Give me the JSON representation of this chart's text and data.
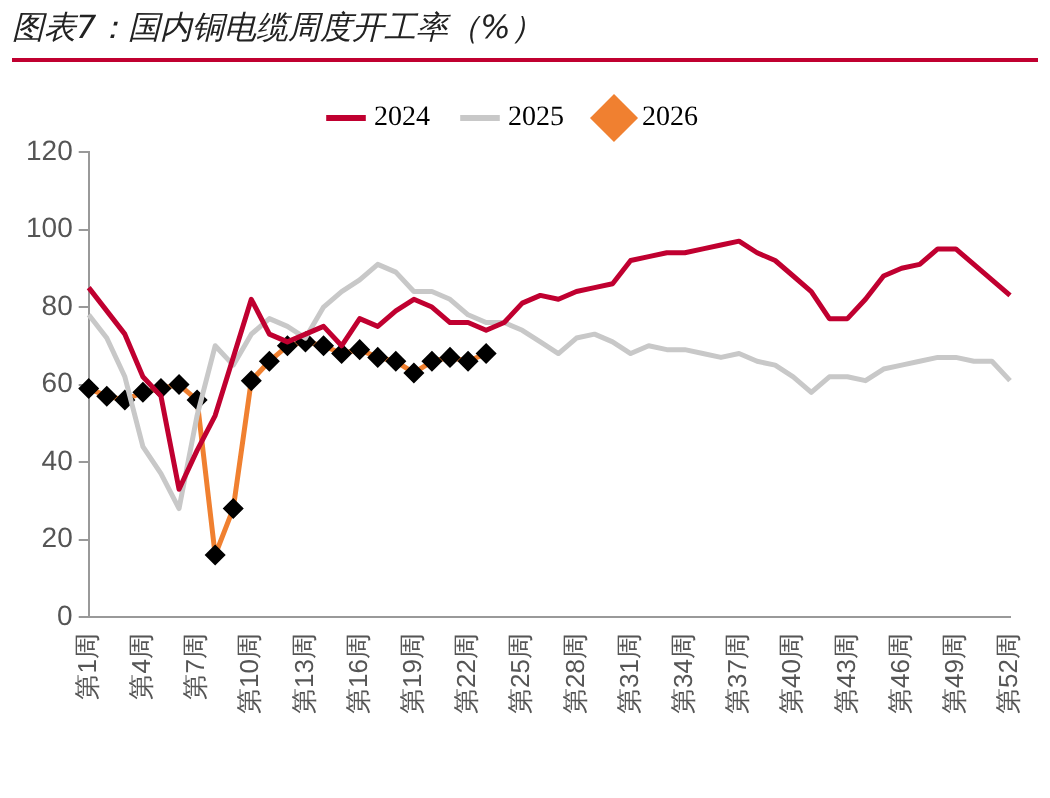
{
  "chart_data": {
    "type": "line",
    "title": "图表7：国内铜电缆周度开工率（%）",
    "categories": [
      "第1周",
      null,
      null,
      "第4周",
      null,
      null,
      "第7周",
      null,
      null,
      "第10周",
      null,
      null,
      "第13周",
      null,
      null,
      "第16周",
      null,
      null,
      "第19周",
      null,
      null,
      "第22周",
      null,
      null,
      "第25周",
      null,
      null,
      "第28周",
      null,
      null,
      "第31周",
      null,
      null,
      "第34周",
      null,
      null,
      "第37周",
      null,
      null,
      "第40周",
      null,
      null,
      "第43周",
      null,
      null,
      "第46周",
      null,
      null,
      "第49周",
      null,
      null,
      "第52周"
    ],
    "series": [
      {
        "name": "2024",
        "color": "#c00030",
        "marker": "none",
        "values": [
          85,
          79,
          73,
          62,
          57,
          33,
          43,
          52,
          67,
          82,
          73,
          71,
          73,
          75,
          70,
          77,
          75,
          79,
          82,
          80,
          76,
          76,
          74,
          76,
          81,
          83,
          82,
          84,
          85,
          86,
          92,
          93,
          94,
          94,
          95,
          96,
          97,
          94,
          92,
          88,
          84,
          77,
          77,
          82,
          88,
          90,
          91,
          95,
          95,
          91,
          87,
          83
        ]
      },
      {
        "name": "2025",
        "color": "#c8c8c8",
        "marker": "none",
        "values": [
          78,
          72,
          62,
          44,
          37,
          28,
          52,
          70,
          65,
          73,
          77,
          75,
          72,
          80,
          84,
          87,
          91,
          89,
          84,
          84,
          82,
          78,
          76,
          76,
          74,
          71,
          68,
          72,
          73,
          71,
          68,
          70,
          69,
          69,
          68,
          67,
          68,
          66,
          65,
          62,
          58,
          62,
          62,
          61,
          64,
          65,
          66,
          67,
          67,
          66,
          66,
          61
        ]
      },
      {
        "name": "2026",
        "color": "#f08030",
        "marker": "diamond",
        "values": [
          59,
          57,
          56,
          58,
          59,
          60,
          56,
          16,
          28,
          61,
          66,
          70,
          71,
          70,
          68,
          69,
          67,
          66,
          63,
          66,
          67,
          66,
          68,
          null,
          null,
          null,
          null,
          null,
          null,
          null,
          null,
          null,
          null,
          null,
          null,
          null,
          null,
          null,
          null,
          null,
          null,
          null,
          null,
          null,
          null,
          null,
          null,
          null,
          null,
          null,
          null,
          null
        ]
      }
    ],
    "ylim": [
      0,
      120
    ],
    "yticks": [
      0,
      20,
      40,
      60,
      80,
      100,
      120
    ],
    "grid": false,
    "legend": "top"
  }
}
